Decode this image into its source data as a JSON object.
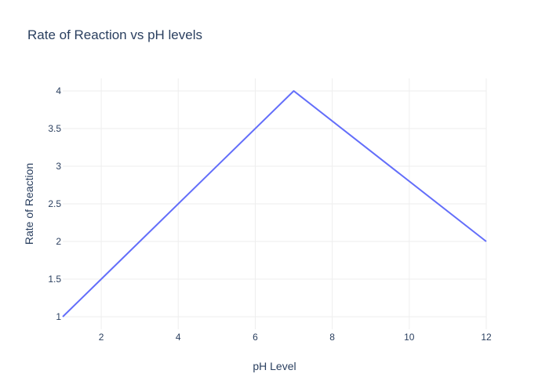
{
  "chart_data": {
    "type": "line",
    "title": "Rate of Reaction vs pH levels",
    "xlabel": "pH Level",
    "ylabel": "Rate of Reaction",
    "xlim": [
      1,
      12
    ],
    "ylim": [
      1,
      4
    ],
    "x_ticks": [
      2,
      4,
      6,
      8,
      10,
      12
    ],
    "y_ticks": [
      1,
      1.5,
      2,
      2.5,
      3,
      3.5,
      4
    ],
    "grid": true,
    "series": [
      {
        "color": "#636efa",
        "x": [
          1,
          7,
          12
        ],
        "y": [
          1,
          4,
          2
        ]
      }
    ]
  }
}
